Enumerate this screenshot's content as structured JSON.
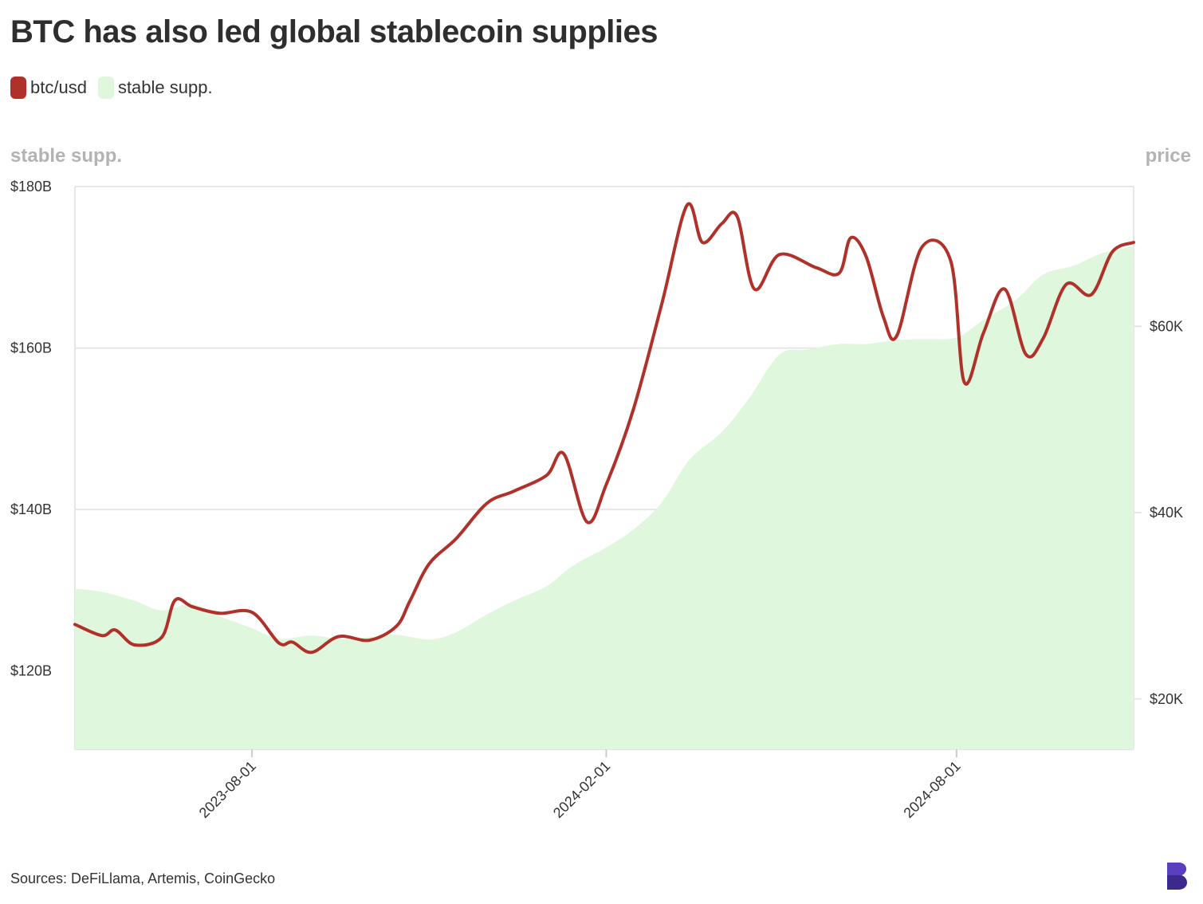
{
  "title": "BTC has also led global stablecoin supplies",
  "legend": [
    {
      "label": "btc/usd",
      "color": "#b0302a"
    },
    {
      "label": "stable supp.",
      "color": "#dff7dc"
    }
  ],
  "left_axis_caption": "stable supp.",
  "right_axis_caption": "price",
  "source": "Sources: DeFiLlama, Artemis, CoinGecko",
  "colors": {
    "btc_line": "#b0302a",
    "stable_area": "#dff7dc",
    "grid": "#e6e6e6",
    "logo": "#3b2a8c"
  },
  "chart_data": {
    "type": "line",
    "title": "BTC has also led global stablecoin supplies",
    "x_ticks": [
      "2023-08-01",
      "2024-02-01",
      "2024-08-01"
    ],
    "left_axis": {
      "label": "stable supp.",
      "ticks": [
        "$120B",
        "$140B",
        "$160B",
        "$180B"
      ],
      "tick_values": [
        120,
        140,
        160,
        180
      ],
      "range": [
        110.3,
        180
      ]
    },
    "right_axis": {
      "label": "price",
      "ticks": [
        "$20K",
        "$40K",
        "$60K"
      ],
      "tick_values": [
        20000,
        40000,
        60000
      ],
      "range": [
        14590,
        75000
      ]
    },
    "grid": true,
    "legend_position": "top-left",
    "series": [
      {
        "name": "stable supp.",
        "type": "area",
        "axis": "left",
        "unit": "$B",
        "x": [
          "2023-05-01",
          "2023-05-15",
          "2023-06-01",
          "2023-06-15",
          "2023-07-01",
          "2023-07-15",
          "2023-08-01",
          "2023-08-15",
          "2023-09-01",
          "2023-09-15",
          "2023-10-01",
          "2023-10-15",
          "2023-11-01",
          "2023-11-15",
          "2023-12-01",
          "2023-12-15",
          "2024-01-01",
          "2024-01-15",
          "2024-02-01",
          "2024-02-15",
          "2024-03-01",
          "2024-03-15",
          "2024-04-01",
          "2024-04-15",
          "2024-05-01",
          "2024-05-15",
          "2024-06-01",
          "2024-06-15",
          "2024-07-01",
          "2024-07-15",
          "2024-08-01",
          "2024-08-15",
          "2024-09-01",
          "2024-09-15",
          "2024-10-01",
          "2024-10-15",
          "2024-11-01"
        ],
        "values": [
          130.2,
          129.8,
          128.7,
          127.5,
          128.3,
          126.8,
          125.3,
          124.0,
          124.4,
          124.0,
          124.2,
          124.5,
          123.9,
          124.8,
          127.0,
          128.7,
          130.5,
          133.1,
          135.3,
          137.5,
          140.9,
          146.1,
          149.6,
          153.7,
          159.2,
          159.8,
          160.5,
          160.5,
          161.0,
          161.1,
          161.3,
          163.5,
          166.0,
          169.1,
          170.2,
          171.7,
          172.6
        ]
      },
      {
        "name": "btc/usd",
        "type": "line",
        "axis": "right",
        "unit": "USD",
        "x": [
          "2023-05-01",
          "2023-05-15",
          "2023-05-22",
          "2023-06-01",
          "2023-06-15",
          "2023-06-22",
          "2023-07-01",
          "2023-07-15",
          "2023-08-01",
          "2023-08-15",
          "2023-08-22",
          "2023-09-01",
          "2023-09-15",
          "2023-10-01",
          "2023-10-15",
          "2023-10-22",
          "2023-11-01",
          "2023-11-15",
          "2023-12-01",
          "2023-12-15",
          "2024-01-01",
          "2024-01-10",
          "2024-01-22",
          "2024-02-01",
          "2024-02-15",
          "2024-03-01",
          "2024-03-14",
          "2024-03-22",
          "2024-04-01",
          "2024-04-09",
          "2024-04-18",
          "2024-05-01",
          "2024-05-20",
          "2024-06-01",
          "2024-06-07",
          "2024-06-15",
          "2024-06-24",
          "2024-07-01",
          "2024-07-14",
          "2024-07-29",
          "2024-08-05",
          "2024-08-15",
          "2024-08-26",
          "2024-09-06",
          "2024-09-15",
          "2024-09-27",
          "2024-10-10",
          "2024-10-21",
          "2024-11-01"
        ],
        "values": [
          28000,
          26800,
          27400,
          25800,
          26600,
          30600,
          29900,
          29200,
          29300,
          26000,
          26100,
          25000,
          26700,
          26300,
          27800,
          30500,
          34500,
          37200,
          41000,
          42300,
          44000,
          46300,
          39000,
          43000,
          51000,
          62500,
          73000,
          69000,
          71000,
          71800,
          64000,
          67700,
          66300,
          65700,
          69500,
          67500,
          61000,
          59000,
          68500,
          67000,
          54000,
          59300,
          64000,
          57000,
          58700,
          64500,
          63400,
          68000,
          69000
        ]
      }
    ]
  }
}
